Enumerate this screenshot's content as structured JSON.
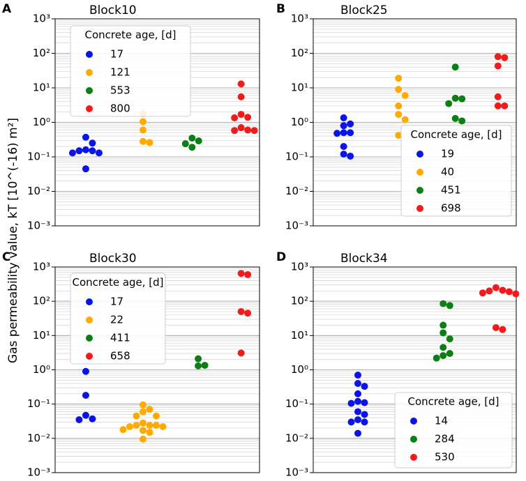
{
  "figure": {
    "ylabel": "Gas permeability value, kT [10^(-16) m²]"
  },
  "chart_data": [
    {
      "type": "scatter",
      "letter": "A",
      "title": "Block10",
      "yscale": "log",
      "ylim": [
        0.001,
        1000
      ],
      "yticks": [
        "10⁻³",
        "10⁻²",
        "10⁻¹",
        "10⁰",
        "10¹",
        "10²",
        "10³"
      ],
      "grid": true,
      "legend": {
        "title": "Concrete age, [d]",
        "placement": "upper-left"
      },
      "series": [
        {
          "name": "17",
          "color": "#0a14e6",
          "values": [
            0.37,
            0.25,
            0.16,
            0.15,
            0.15,
            0.13,
            0.13,
            0.045
          ]
        },
        {
          "name": "121",
          "color": "#ffaa00",
          "values": [
            1.8,
            1.05,
            0.6,
            0.28,
            0.26
          ]
        },
        {
          "name": "553",
          "color": "#0a7f14",
          "values": [
            0.35,
            0.29,
            0.24,
            0.19
          ]
        },
        {
          "name": "800",
          "color": "#f21a1a",
          "values": [
            13,
            5.5,
            1.7,
            1.4,
            1.35,
            0.7,
            0.6,
            0.58,
            0.58
          ]
        }
      ]
    },
    {
      "type": "scatter",
      "letter": "B",
      "title": "Block25",
      "yscale": "log",
      "ylim": [
        0.001,
        1000
      ],
      "yticks": [
        "10⁻³",
        "10⁻²",
        "10⁻¹",
        "10⁰",
        "10¹",
        "10²",
        "10³"
      ],
      "grid": true,
      "legend": {
        "title": "Concrete age, [d]",
        "placement": "lower-right"
      },
      "series": [
        {
          "name": "19",
          "color": "#0a14e6",
          "values": [
            1.35,
            0.9,
            0.8,
            0.5,
            0.5,
            0.48,
            0.2,
            0.12,
            0.105
          ]
        },
        {
          "name": "40",
          "color": "#ffaa00",
          "values": [
            19,
            9,
            6,
            3,
            1.7,
            1.2,
            0.42
          ]
        },
        {
          "name": "451",
          "color": "#0a7f14",
          "values": [
            40,
            5,
            4.8,
            3.5,
            1.3,
            1.1
          ]
        },
        {
          "name": "698",
          "color": "#f21a1a",
          "values": [
            80,
            75,
            43,
            5.5,
            3,
            3
          ]
        }
      ]
    },
    {
      "type": "scatter",
      "letter": "C",
      "title": "Block30",
      "yscale": "log",
      "ylim": [
        0.001,
        1000
      ],
      "yticks": [
        "10⁻³",
        "10⁻²",
        "10⁻¹",
        "10⁰",
        "10¹",
        "10²",
        "10³"
      ],
      "grid": true,
      "legend": {
        "title": "Concrete age, [d]",
        "placement": "upper-left"
      },
      "series": [
        {
          "name": "17",
          "color": "#0a14e6",
          "values": [
            0.9,
            0.18,
            0.047,
            0.037,
            0.035
          ]
        },
        {
          "name": "22",
          "color": "#ffaa00",
          "values": [
            0.095,
            0.07,
            0.06,
            0.045,
            0.045,
            0.028,
            0.024,
            0.024,
            0.024,
            0.022,
            0.022,
            0.018,
            0.017,
            0.015,
            0.0095
          ]
        },
        {
          "name": "411",
          "color": "#0a7f14",
          "values": [
            2.1,
            1.35,
            1.3
          ]
        },
        {
          "name": "658",
          "color": "#f21a1a",
          "values": [
            650,
            600,
            50,
            45,
            3.1
          ]
        }
      ]
    },
    {
      "type": "scatter",
      "letter": "D",
      "title": "Block34",
      "yscale": "log",
      "ylim": [
        0.001,
        1000
      ],
      "yticks": [
        "10⁻³",
        "10⁻²",
        "10⁻¹",
        "10⁰",
        "10¹",
        "10²",
        "10³"
      ],
      "grid": true,
      "legend": {
        "title": "Concrete age, [d]",
        "placement": "lower-right"
      },
      "series": [
        {
          "name": "14",
          "color": "#0a14e6",
          "values": [
            0.7,
            0.4,
            0.33,
            0.2,
            0.12,
            0.11,
            0.105,
            0.06,
            0.05,
            0.035,
            0.03,
            0.03,
            0.014
          ]
        },
        {
          "name": "284",
          "color": "#0a7f14",
          "values": [
            85,
            75,
            20,
            12,
            8,
            4.5,
            3,
            2.6,
            2.2
          ]
        },
        {
          "name": "530",
          "color": "#f21a1a",
          "values": [
            250,
            210,
            200,
            190,
            175,
            165,
            17,
            15
          ]
        }
      ]
    }
  ]
}
